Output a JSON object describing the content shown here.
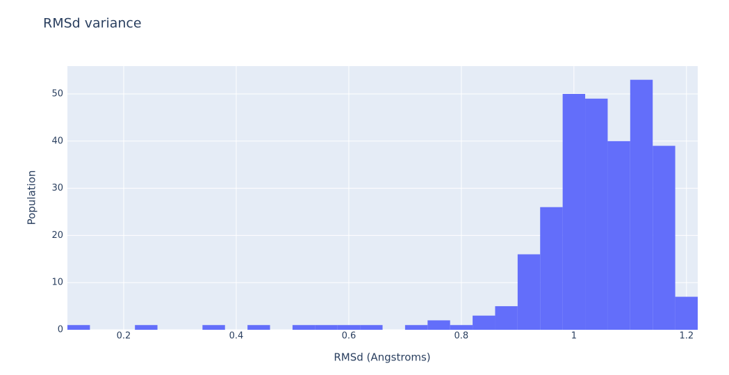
{
  "chart_data": {
    "type": "histogram",
    "title": "RMSd variance",
    "x_label": "RMSd (Angstroms)",
    "y_label": "Population",
    "bins": [
      0.1,
      0.14,
      0.18,
      0.22,
      0.26,
      0.3,
      0.34,
      0.38,
      0.42,
      0.46,
      0.5,
      0.54,
      0.58,
      0.62,
      0.66,
      0.7,
      0.74,
      0.78,
      0.82,
      0.86,
      0.9,
      0.94,
      0.98,
      1.02,
      1.06,
      1.1,
      1.14,
      1.18,
      1.22
    ],
    "values": [
      1,
      0,
      0,
      1,
      0,
      0,
      1,
      0,
      1,
      0,
      1,
      1,
      1,
      1,
      0,
      1,
      2,
      1,
      3,
      5,
      16,
      26,
      50,
      49,
      40,
      53,
      39,
      7
    ],
    "color": "#636efa",
    "xlim": [
      0.1,
      1.22
    ],
    "xticks": [
      0.2,
      0.4,
      0.6,
      0.8,
      1,
      1.2
    ],
    "ylim": [
      0,
      55.9
    ],
    "yticks": [
      0,
      10,
      20,
      30,
      40,
      50
    ],
    "grid": true
  }
}
